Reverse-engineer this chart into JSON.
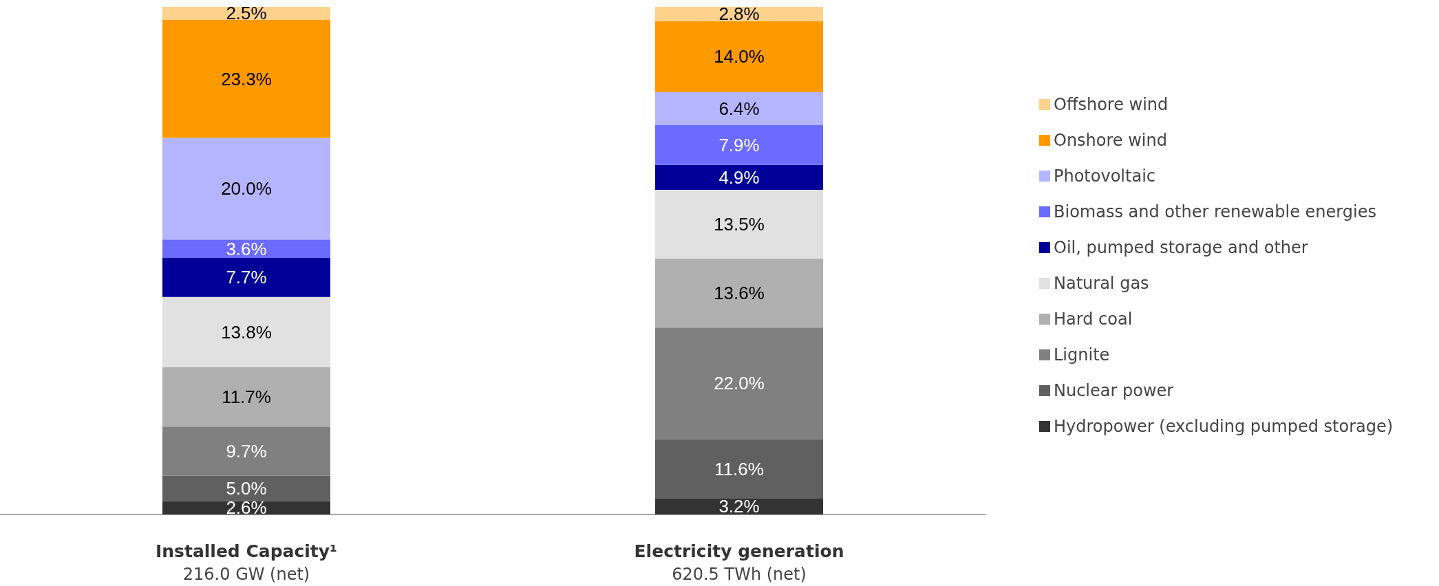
{
  "chart_data": {
    "type": "bar",
    "stacked": true,
    "legend": "right",
    "grid": false,
    "categories": [
      "Installed Capacity¹\n216.0 GW (net)",
      "Electricity generation\n620.5 TWh (net)"
    ],
    "series": [
      {
        "name": "Hydropower (excluding pumped storage)",
        "color": "#333333",
        "values": [
          2.6,
          3.2
        ],
        "value_labels": [
          "2.6%",
          "3.2%"
        ]
      },
      {
        "name": "Nuclear power",
        "color": "#606060",
        "values": [
          5.0,
          11.6
        ],
        "value_labels": [
          "5.0%",
          "11.6%"
        ]
      },
      {
        "name": "Lignite",
        "color": "#808080",
        "values": [
          9.7,
          22.0
        ],
        "value_labels": [
          "9.7%",
          "22.0%"
        ]
      },
      {
        "name": "Hard coal",
        "color": "#b0b0b0",
        "values": [
          11.7,
          13.6
        ],
        "value_labels": [
          "11.7%",
          "13.6%"
        ]
      },
      {
        "name": "Natural gas",
        "color": "#e1e1e1",
        "values": [
          13.8,
          13.5
        ],
        "value_labels": [
          "13.8%",
          "13.5%"
        ]
      },
      {
        "name": "Oil, pumped storage and other",
        "color": "#000099",
        "values": [
          7.7,
          4.9
        ],
        "value_labels": [
          "7.7%",
          "4.9%"
        ]
      },
      {
        "name": "Biomass and other renewable energies",
        "color": "#6b6bff",
        "values": [
          3.6,
          7.9
        ],
        "value_labels": [
          "3.6%",
          "7.9%"
        ]
      },
      {
        "name": "Photovoltaic",
        "color": "#b5b5ff",
        "values": [
          20.0,
          6.4
        ],
        "value_labels": [
          "20.0%",
          "6.4%"
        ]
      },
      {
        "name": "Onshore wind",
        "color": "#ff9900",
        "values": [
          23.3,
          14.0
        ],
        "value_labels": [
          "23.3%",
          "14.0%"
        ]
      },
      {
        "name": "Offshore wind",
        "color": "#fdd28c",
        "values": [
          2.5,
          2.8
        ],
        "value_labels": [
          "2.5%",
          "2.8%"
        ]
      }
    ]
  }
}
